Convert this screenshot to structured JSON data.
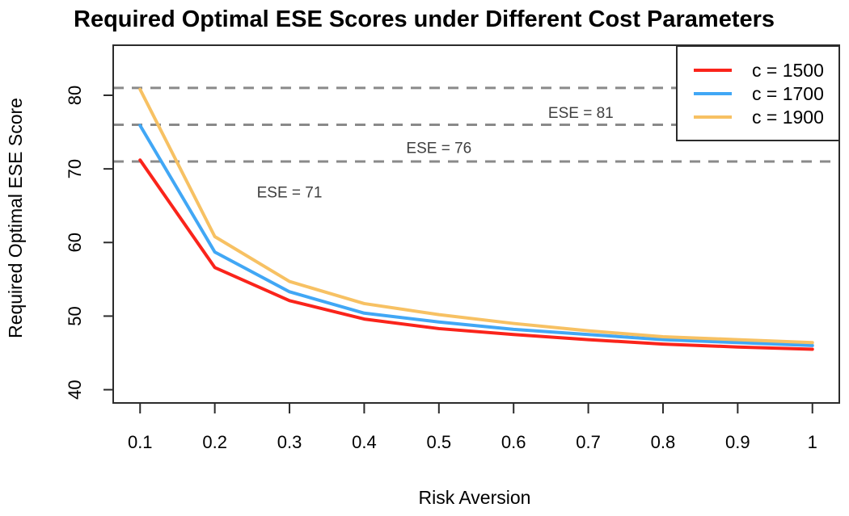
{
  "title": "Required Optimal ESE Scores under Different Cost Parameters",
  "chart_data": {
    "type": "line",
    "title": "Required Optimal ESE Scores under Different Cost Parameters",
    "xlabel": "Risk Aversion",
    "ylabel": "Required Optimal ESE Score",
    "x": [
      0.1,
      0.2,
      0.3,
      0.4,
      0.5,
      0.6,
      0.7,
      0.8,
      0.9,
      1.0
    ],
    "x_tick_labels": [
      "0.1",
      "0.2",
      "0.3",
      "0.4",
      "0.5",
      "0.6",
      "0.7",
      "0.8",
      "0.9",
      "1"
    ],
    "y_ticks": [
      40,
      50,
      60,
      70,
      80
    ],
    "y_tick_labels": [
      "40",
      "50",
      "60",
      "70",
      "80"
    ],
    "xlim": [
      0.064,
      1.036
    ],
    "ylim": [
      38.2,
      86.8
    ],
    "grid": false,
    "legend_position": "top-right",
    "series": [
      {
        "name": "c = 1500",
        "color": "#FA241B",
        "values": [
          71.2,
          56.6,
          52.1,
          49.6,
          48.3,
          47.5,
          46.8,
          46.2,
          45.8,
          45.5
        ]
      },
      {
        "name": "c = 1700",
        "color": "#41A7F5",
        "values": [
          75.9,
          58.7,
          53.3,
          50.4,
          49.2,
          48.2,
          47.5,
          46.8,
          46.4,
          46.0
        ]
      },
      {
        "name": "c = 1900",
        "color": "#F7C163",
        "values": [
          80.8,
          60.8,
          54.7,
          51.7,
          50.2,
          49.0,
          48.0,
          47.2,
          46.8,
          46.4
        ]
      }
    ],
    "reference_lines": [
      {
        "value": 81,
        "label": "ESE = 81",
        "label_x": 0.69,
        "label_y": 77.7
      },
      {
        "value": 76,
        "label": "ESE = 76",
        "label_x": 0.5,
        "label_y": 72.9
      },
      {
        "value": 71,
        "label": "ESE = 71",
        "label_x": 0.3,
        "label_y": 66.9
      }
    ],
    "colors": {
      "reference_dash": "#8A8A8A",
      "axis_box": "#2B2B2B",
      "tick_text": "#000000",
      "annotation_text": "#404040"
    }
  }
}
